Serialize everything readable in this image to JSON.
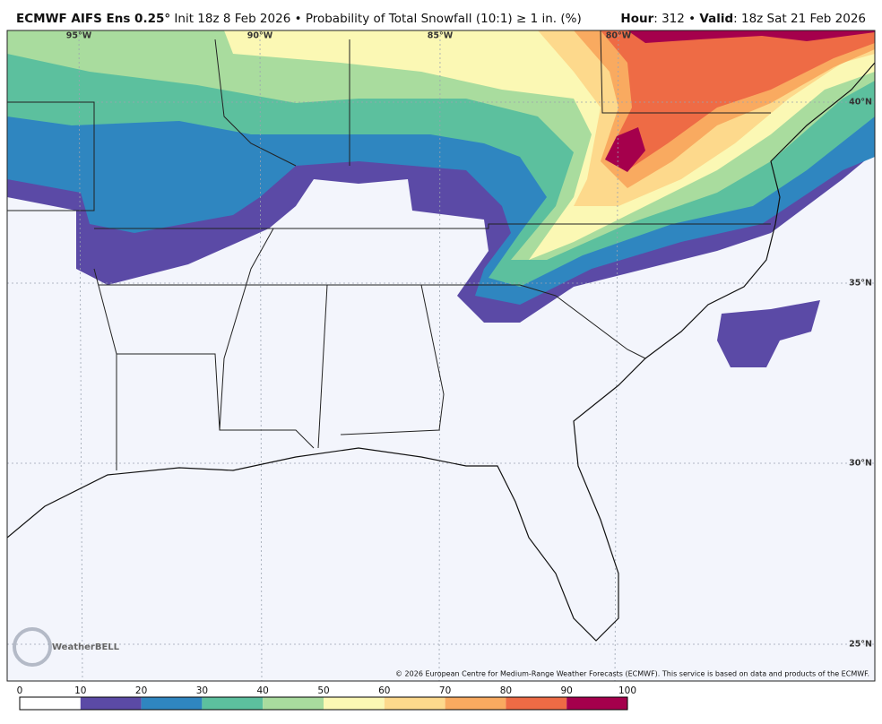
{
  "header": {
    "title": "ECMWF AIFS Ens 0.25°",
    "subtitle": "Init 18z 8 Feb 2026 • Probability of Total Snowfall (10:1) ≥ 1 in. (%)",
    "hour_label": "Hour",
    "hour_value": ": 312 •",
    "valid_label": "Valid",
    "valid_value": ": 18z Sat 21 Feb 2026"
  },
  "map": {
    "longitude_labels": [
      "95°W",
      "90°W",
      "85°W",
      "80°W"
    ],
    "latitude_labels": [
      "40°N",
      "35°N",
      "30°N",
      "25°N"
    ],
    "logo": "WeatherBELL",
    "copyright": "© 2026 European Centre for Medium-Range Weather Forecasts (ECMWF). This service is based on data and products of the ECMWF."
  },
  "colorbar": {
    "ticks": [
      0,
      10,
      20,
      30,
      40,
      50,
      60,
      70,
      80,
      90,
      100
    ],
    "colors": [
      "#ffffff",
      "#5b4aa6",
      "#2f86c0",
      "#5cc09e",
      "#a9dc9e",
      "#fbf8b4",
      "#fdd98c",
      "#f9aa60",
      "#ee6b45",
      "#a5004c"
    ]
  }
}
